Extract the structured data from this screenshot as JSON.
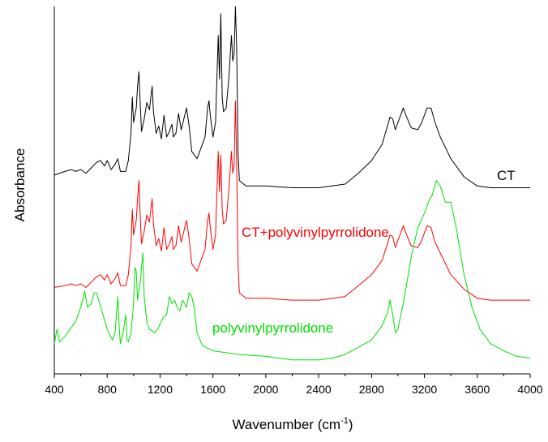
{
  "chart_data": {
    "type": "line",
    "title": "",
    "xlabel_main": "Wavenumber (cm",
    "xlabel_sup": "-1",
    "xlabel_close": ")",
    "ylabel": "Absorbance",
    "xlim": [
      400,
      4000
    ],
    "ylim": [
      0,
      1
    ],
    "x_ticks": [
      400,
      800,
      1200,
      1600,
      2000,
      2400,
      2800,
      3200,
      3600,
      4000
    ],
    "x_tick_labels": [
      "400",
      "800",
      "1200",
      "1600",
      "2000",
      "2400",
      "2800",
      "3200",
      "3600",
      "4000"
    ],
    "y_ticks_shown": false,
    "grid": false,
    "series": [
      {
        "name": "CT",
        "color": "#000000",
        "points": [
          [
            400,
            0.535
          ],
          [
            480,
            0.545
          ],
          [
            530,
            0.55
          ],
          [
            560,
            0.545
          ],
          [
            600,
            0.55
          ],
          [
            640,
            0.54
          ],
          [
            680,
            0.555
          ],
          [
            720,
            0.57
          ],
          [
            750,
            0.575
          ],
          [
            780,
            0.56
          ],
          [
            800,
            0.575
          ],
          [
            830,
            0.55
          ],
          [
            860,
            0.565
          ],
          [
            880,
            0.58
          ],
          [
            900,
            0.545
          ],
          [
            940,
            0.545
          ],
          [
            960,
            0.575
          ],
          [
            980,
            0.65
          ],
          [
            990,
            0.75
          ],
          [
            1000,
            0.68
          ],
          [
            1020,
            0.72
          ],
          [
            1030,
            0.78
          ],
          [
            1040,
            0.82
          ],
          [
            1050,
            0.73
          ],
          [
            1060,
            0.655
          ],
          [
            1080,
            0.69
          ],
          [
            1100,
            0.735
          ],
          [
            1120,
            0.715
          ],
          [
            1130,
            0.75
          ],
          [
            1140,
            0.78
          ],
          [
            1150,
            0.71
          ],
          [
            1170,
            0.65
          ],
          [
            1190,
            0.67
          ],
          [
            1210,
            0.635
          ],
          [
            1230,
            0.7
          ],
          [
            1250,
            0.64
          ],
          [
            1270,
            0.655
          ],
          [
            1290,
            0.675
          ],
          [
            1300,
            0.64
          ],
          [
            1320,
            0.65
          ],
          [
            1340,
            0.705
          ],
          [
            1360,
            0.66
          ],
          [
            1380,
            0.69
          ],
          [
            1400,
            0.72
          ],
          [
            1420,
            0.67
          ],
          [
            1440,
            0.6
          ],
          [
            1480,
            0.58
          ],
          [
            1520,
            0.62
          ],
          [
            1540,
            0.64
          ],
          [
            1560,
            0.72
          ],
          [
            1570,
            0.74
          ],
          [
            1580,
            0.7
          ],
          [
            1600,
            0.64
          ],
          [
            1620,
            0.68
          ],
          [
            1640,
            0.92
          ],
          [
            1650,
            0.8
          ],
          [
            1660,
            0.98
          ],
          [
            1670,
            0.75
          ],
          [
            1680,
            0.71
          ],
          [
            1700,
            0.72
          ],
          [
            1720,
            0.8
          ],
          [
            1740,
            0.92
          ],
          [
            1750,
            0.85
          ],
          [
            1760,
            0.87
          ],
          [
            1770,
            1.0
          ],
          [
            1780,
            0.88
          ],
          [
            1790,
            0.6
          ],
          [
            1800,
            0.52
          ],
          [
            1850,
            0.505
          ],
          [
            2000,
            0.505
          ],
          [
            2200,
            0.5
          ],
          [
            2400,
            0.5
          ],
          [
            2600,
            0.51
          ],
          [
            2700,
            0.54
          ],
          [
            2800,
            0.575
          ],
          [
            2880,
            0.62
          ],
          [
            2920,
            0.67
          ],
          [
            2940,
            0.695
          ],
          [
            2960,
            0.69
          ],
          [
            2980,
            0.66
          ],
          [
            3000,
            0.68
          ],
          [
            3040,
            0.72
          ],
          [
            3060,
            0.7
          ],
          [
            3100,
            0.665
          ],
          [
            3150,
            0.66
          ],
          [
            3180,
            0.68
          ],
          [
            3220,
            0.72
          ],
          [
            3250,
            0.72
          ],
          [
            3280,
            0.68
          ],
          [
            3320,
            0.64
          ],
          [
            3400,
            0.58
          ],
          [
            3500,
            0.53
          ],
          [
            3600,
            0.505
          ],
          [
            3700,
            0.5
          ],
          [
            3800,
            0.5
          ],
          [
            4000,
            0.5
          ]
        ]
      },
      {
        "name": "CT+polyvinylpyrrolidone",
        "color": "#ff0000",
        "points": [
          [
            400,
            0.225
          ],
          [
            480,
            0.23
          ],
          [
            530,
            0.235
          ],
          [
            560,
            0.23
          ],
          [
            600,
            0.235
          ],
          [
            640,
            0.225
          ],
          [
            680,
            0.24
          ],
          [
            720,
            0.255
          ],
          [
            750,
            0.26
          ],
          [
            780,
            0.245
          ],
          [
            800,
            0.26
          ],
          [
            830,
            0.235
          ],
          [
            860,
            0.25
          ],
          [
            880,
            0.265
          ],
          [
            900,
            0.23
          ],
          [
            940,
            0.23
          ],
          [
            960,
            0.26
          ],
          [
            980,
            0.34
          ],
          [
            990,
            0.44
          ],
          [
            1000,
            0.37
          ],
          [
            1020,
            0.41
          ],
          [
            1030,
            0.47
          ],
          [
            1040,
            0.52
          ],
          [
            1050,
            0.42
          ],
          [
            1060,
            0.345
          ],
          [
            1080,
            0.38
          ],
          [
            1100,
            0.425
          ],
          [
            1120,
            0.405
          ],
          [
            1130,
            0.44
          ],
          [
            1140,
            0.47
          ],
          [
            1150,
            0.4
          ],
          [
            1170,
            0.34
          ],
          [
            1190,
            0.36
          ],
          [
            1210,
            0.325
          ],
          [
            1230,
            0.39
          ],
          [
            1250,
            0.33
          ],
          [
            1270,
            0.345
          ],
          [
            1290,
            0.365
          ],
          [
            1300,
            0.33
          ],
          [
            1320,
            0.34
          ],
          [
            1340,
            0.395
          ],
          [
            1360,
            0.35
          ],
          [
            1380,
            0.38
          ],
          [
            1400,
            0.41
          ],
          [
            1420,
            0.36
          ],
          [
            1440,
            0.29
          ],
          [
            1480,
            0.27
          ],
          [
            1520,
            0.31
          ],
          [
            1540,
            0.33
          ],
          [
            1560,
            0.41
          ],
          [
            1570,
            0.43
          ],
          [
            1580,
            0.39
          ],
          [
            1600,
            0.33
          ],
          [
            1620,
            0.37
          ],
          [
            1640,
            0.6
          ],
          [
            1650,
            0.49
          ],
          [
            1660,
            0.59
          ],
          [
            1670,
            0.44
          ],
          [
            1680,
            0.4
          ],
          [
            1700,
            0.41
          ],
          [
            1720,
            0.49
          ],
          [
            1740,
            0.6
          ],
          [
            1750,
            0.54
          ],
          [
            1760,
            0.56
          ],
          [
            1770,
            0.74
          ],
          [
            1780,
            0.56
          ],
          [
            1790,
            0.29
          ],
          [
            1800,
            0.21
          ],
          [
            1850,
            0.195
          ],
          [
            2000,
            0.195
          ],
          [
            2200,
            0.19
          ],
          [
            2400,
            0.19
          ],
          [
            2600,
            0.2
          ],
          [
            2700,
            0.23
          ],
          [
            2800,
            0.26
          ],
          [
            2880,
            0.3
          ],
          [
            2920,
            0.345
          ],
          [
            2940,
            0.37
          ],
          [
            2960,
            0.365
          ],
          [
            2980,
            0.335
          ],
          [
            3000,
            0.355
          ],
          [
            3040,
            0.395
          ],
          [
            3060,
            0.375
          ],
          [
            3100,
            0.34
          ],
          [
            3150,
            0.335
          ],
          [
            3180,
            0.355
          ],
          [
            3220,
            0.395
          ],
          [
            3250,
            0.39
          ],
          [
            3280,
            0.35
          ],
          [
            3320,
            0.32
          ],
          [
            3400,
            0.26
          ],
          [
            3500,
            0.22
          ],
          [
            3600,
            0.195
          ],
          [
            3700,
            0.19
          ],
          [
            3800,
            0.19
          ],
          [
            4000,
            0.19
          ]
        ]
      },
      {
        "name": "polyvinylpyrrolidone",
        "color": "#00e000",
        "points": [
          [
            400,
            0.07
          ],
          [
            420,
            0.11
          ],
          [
            440,
            0.075
          ],
          [
            480,
            0.09
          ],
          [
            520,
            0.11
          ],
          [
            560,
            0.13
          ],
          [
            600,
            0.17
          ],
          [
            630,
            0.215
          ],
          [
            650,
            0.17
          ],
          [
            680,
            0.18
          ],
          [
            700,
            0.21
          ],
          [
            720,
            0.21
          ],
          [
            760,
            0.16
          ],
          [
            800,
            0.11
          ],
          [
            840,
            0.08
          ],
          [
            860,
            0.1
          ],
          [
            880,
            0.2
          ],
          [
            890,
            0.12
          ],
          [
            900,
            0.07
          ],
          [
            920,
            0.1
          ],
          [
            940,
            0.15
          ],
          [
            950,
            0.08
          ],
          [
            960,
            0.075
          ],
          [
            980,
            0.1
          ],
          [
            1000,
            0.18
          ],
          [
            1010,
            0.28
          ],
          [
            1020,
            0.27
          ],
          [
            1030,
            0.19
          ],
          [
            1050,
            0.24
          ],
          [
            1070,
            0.32
          ],
          [
            1080,
            0.2
          ],
          [
            1100,
            0.13
          ],
          [
            1120,
            0.11
          ],
          [
            1160,
            0.1
          ],
          [
            1190,
            0.115
          ],
          [
            1220,
            0.14
          ],
          [
            1250,
            0.15
          ],
          [
            1270,
            0.2
          ],
          [
            1290,
            0.18
          ],
          [
            1310,
            0.19
          ],
          [
            1330,
            0.17
          ],
          [
            1350,
            0.16
          ],
          [
            1370,
            0.19
          ],
          [
            1400,
            0.17
          ],
          [
            1420,
            0.21
          ],
          [
            1440,
            0.2
          ],
          [
            1460,
            0.165
          ],
          [
            1480,
            0.1
          ],
          [
            1520,
            0.065
          ],
          [
            1600,
            0.05
          ],
          [
            1800,
            0.04
          ],
          [
            2000,
            0.035
          ],
          [
            2200,
            0.025
          ],
          [
            2400,
            0.025
          ],
          [
            2500,
            0.03
          ],
          [
            2600,
            0.04
          ],
          [
            2700,
            0.06
          ],
          [
            2800,
            0.08
          ],
          [
            2880,
            0.12
          ],
          [
            2920,
            0.155
          ],
          [
            2940,
            0.19
          ],
          [
            2960,
            0.15
          ],
          [
            2980,
            0.1
          ],
          [
            3000,
            0.11
          ],
          [
            3050,
            0.2
          ],
          [
            3100,
            0.31
          ],
          [
            3150,
            0.39
          ],
          [
            3200,
            0.43
          ],
          [
            3240,
            0.47
          ],
          [
            3260,
            0.48
          ],
          [
            3290,
            0.52
          ],
          [
            3320,
            0.505
          ],
          [
            3360,
            0.46
          ],
          [
            3400,
            0.46
          ],
          [
            3440,
            0.39
          ],
          [
            3500,
            0.26
          ],
          [
            3560,
            0.17
          ],
          [
            3620,
            0.11
          ],
          [
            3700,
            0.07
          ],
          [
            3800,
            0.05
          ],
          [
            3900,
            0.035
          ],
          [
            4000,
            0.03
          ]
        ]
      }
    ]
  }
}
